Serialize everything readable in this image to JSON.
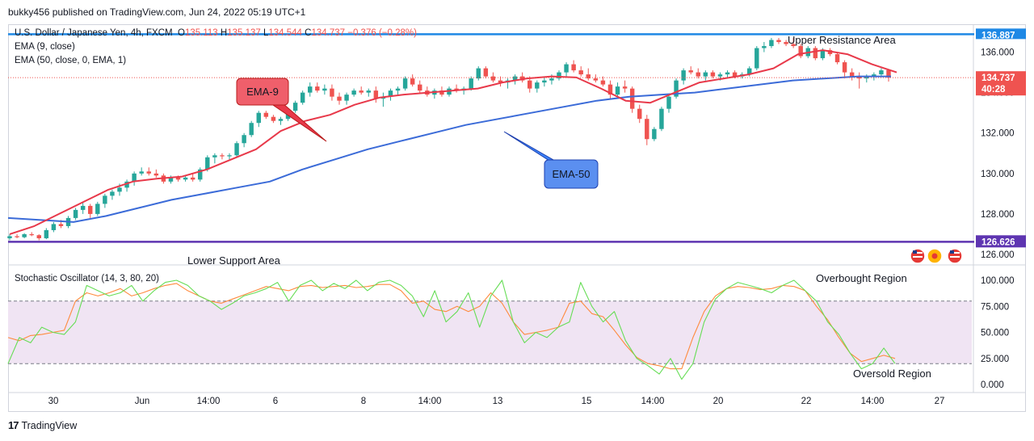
{
  "header": {
    "published": "bukky456 published on TradingView.com, Jun 24, 2022 05:19 UTC+1"
  },
  "legend": {
    "symbol": "U.S. Dollar / Japanese Yen, 4h, FXCM",
    "o_label": "O",
    "o": "135.113",
    "h_label": "H",
    "h": "135.137",
    "l_label": "L",
    "l": "134.544",
    "c_label": "C",
    "c": "134.737",
    "change": "−0.376 (−0.28%)",
    "ema9": "EMA (9, close)",
    "ema50": "EMA (50, close, 0, EMA, 1)",
    "stoch": "Stochastic Oscillator (14, 3, 80, 20)"
  },
  "annotations": {
    "ema9_callout": "EMA-9",
    "ema50_callout": "EMA-50",
    "upper": "Upper Resistance Area",
    "lower": "Lower Support Area",
    "overbought": "Overbought Region",
    "oversold": "Oversold Region"
  },
  "price_axis": {
    "currency": "JPY",
    "ticks": [
      "136.000",
      "134.000",
      "132.000",
      "130.000",
      "128.000",
      "126.000"
    ],
    "resistance_label": "136.887",
    "last_price_label": "134.737",
    "countdown": "40:28",
    "support_label": "126.626"
  },
  "stoch_axis": {
    "ticks": [
      "100.000",
      "75.000",
      "50.000",
      "25.000",
      "0.000"
    ]
  },
  "time_axis": {
    "labels": [
      "30",
      "Jun",
      "14:00",
      "6",
      "8",
      "14:00",
      "13",
      "15",
      "14:00",
      "20",
      "22",
      "14:00",
      "27"
    ]
  },
  "footer": {
    "brand": "TradingView",
    "logo": "17"
  },
  "colors": {
    "bull": "#26a69a",
    "bear": "#ef5350",
    "ema9": "#e8394a",
    "ema50": "#3b6bd8",
    "resistance": "#1e88e5",
    "support": "#5e35b1",
    "stoch_k": "#66dd55",
    "stoch_d": "#ff8a3d",
    "band": "#f0e4f3"
  },
  "chart_data": [
    {
      "type": "candlestick",
      "title": "U.S. Dollar / Japanese Yen, 4h, FXCM",
      "ylabel": "JPY",
      "ylim": [
        125.8,
        137.3
      ],
      "x": [
        "May 30",
        "",
        "",
        "",
        "",
        "",
        "",
        "",
        "",
        "",
        "",
        "Jun",
        "",
        "",
        "",
        "",
        "",
        "",
        "",
        "",
        "",
        "",
        "",
        "",
        "",
        "",
        "",
        "",
        "",
        "Jun 6",
        "",
        "",
        "",
        "",
        "",
        "",
        "",
        "",
        "",
        "",
        "",
        "",
        "",
        "Jun 8",
        "",
        "",
        "",
        "",
        "",
        "",
        "",
        "",
        "",
        "",
        "",
        "",
        "",
        "",
        "",
        "",
        "",
        "",
        "",
        "",
        "",
        "",
        "Jun 13",
        "",
        "",
        "",
        "",
        "",
        "",
        "",
        "",
        "",
        "",
        "",
        "",
        "",
        "",
        "Jun 15",
        "",
        "",
        "",
        "",
        "",
        "",
        "",
        "",
        "",
        "",
        "",
        "",
        "",
        "",
        "",
        "",
        "",
        "",
        "",
        "",
        "",
        "",
        "Jun 20",
        "",
        "",
        "",
        "",
        "",
        "",
        "",
        "",
        "",
        "",
        "",
        "",
        "",
        "Jun 22",
        "",
        "",
        "",
        "",
        "",
        "",
        "",
        "",
        "",
        "",
        "",
        "",
        ""
      ],
      "ohlc": [
        [
          126.8,
          127.0,
          126.7,
          126.9
        ],
        [
          126.9,
          127.0,
          126.8,
          126.85
        ],
        [
          126.85,
          127.05,
          126.8,
          127.0
        ],
        [
          127.0,
          127.1,
          126.9,
          126.95
        ],
        [
          126.95,
          127.0,
          126.7,
          126.8
        ],
        [
          126.8,
          127.3,
          126.75,
          127.2
        ],
        [
          127.2,
          127.6,
          127.1,
          127.5
        ],
        [
          127.5,
          127.7,
          127.3,
          127.4
        ],
        [
          127.4,
          127.9,
          127.3,
          127.8
        ],
        [
          127.8,
          128.3,
          127.7,
          128.2
        ],
        [
          128.2,
          128.6,
          128.0,
          128.4
        ],
        [
          128.4,
          128.5,
          127.8,
          128.0
        ],
        [
          128.0,
          128.6,
          127.9,
          128.5
        ],
        [
          128.5,
          129.0,
          128.3,
          128.9
        ],
        [
          128.9,
          129.2,
          128.7,
          129.1
        ],
        [
          129.1,
          129.5,
          128.9,
          129.3
        ],
        [
          129.3,
          129.7,
          129.1,
          129.6
        ],
        [
          129.6,
          130.1,
          129.4,
          130.0
        ],
        [
          130.0,
          130.3,
          129.9,
          130.1
        ],
        [
          130.1,
          130.3,
          129.9,
          130.0
        ],
        [
          130.0,
          130.2,
          129.8,
          129.9
        ],
        [
          129.9,
          130.0,
          129.5,
          129.6
        ],
        [
          129.6,
          129.9,
          129.5,
          129.8
        ],
        [
          129.8,
          129.9,
          129.6,
          129.7
        ],
        [
          129.7,
          129.9,
          129.6,
          129.8
        ],
        [
          129.8,
          130.0,
          129.6,
          129.7
        ],
        [
          129.7,
          130.3,
          129.6,
          130.2
        ],
        [
          130.2,
          130.9,
          130.1,
          130.8
        ],
        [
          130.8,
          131.0,
          130.5,
          130.9
        ],
        [
          130.9,
          131.0,
          130.7,
          130.85
        ],
        [
          130.85,
          131.0,
          130.7,
          130.9
        ],
        [
          130.9,
          131.6,
          130.8,
          131.5
        ],
        [
          131.5,
          132.0,
          131.3,
          131.9
        ],
        [
          131.9,
          132.6,
          131.8,
          132.5
        ],
        [
          132.5,
          133.1,
          132.3,
          133.0
        ],
        [
          133.0,
          133.1,
          132.7,
          132.8
        ],
        [
          132.8,
          132.9,
          132.5,
          132.6
        ],
        [
          132.6,
          132.8,
          132.4,
          132.7
        ],
        [
          132.7,
          133.2,
          132.6,
          133.1
        ],
        [
          133.1,
          133.6,
          133.0,
          133.5
        ],
        [
          133.5,
          134.1,
          133.4,
          134.0
        ],
        [
          134.0,
          134.5,
          133.8,
          134.3
        ],
        [
          134.3,
          134.5,
          134.0,
          134.1
        ],
        [
          134.1,
          134.4,
          133.9,
          134.2
        ],
        [
          134.2,
          134.4,
          133.6,
          133.8
        ],
        [
          133.8,
          134.0,
          133.4,
          133.6
        ],
        [
          133.6,
          134.0,
          133.4,
          133.9
        ],
        [
          133.9,
          134.2,
          133.8,
          134.1
        ],
        [
          134.1,
          134.3,
          133.9,
          134.0
        ],
        [
          134.0,
          134.2,
          133.8,
          134.1
        ],
        [
          134.1,
          134.3,
          133.5,
          133.7
        ],
        [
          133.7,
          134.0,
          133.3,
          133.8
        ],
        [
          133.8,
          134.2,
          133.6,
          134.1
        ],
        [
          134.1,
          134.3,
          133.9,
          134.2
        ],
        [
          134.2,
          134.8,
          134.1,
          134.7
        ],
        [
          134.7,
          134.9,
          134.3,
          134.4
        ],
        [
          134.4,
          134.6,
          134.0,
          134.1
        ],
        [
          134.1,
          134.3,
          133.8,
          133.9
        ],
        [
          133.9,
          134.2,
          133.7,
          134.1
        ],
        [
          134.1,
          134.3,
          133.8,
          133.9
        ],
        [
          133.9,
          134.3,
          133.8,
          134.2
        ],
        [
          134.2,
          134.4,
          134.0,
          134.1
        ],
        [
          134.1,
          134.3,
          133.9,
          134.2
        ],
        [
          134.2,
          134.8,
          134.1,
          134.7
        ],
        [
          134.7,
          135.3,
          134.6,
          135.2
        ],
        [
          135.2,
          135.3,
          134.7,
          134.8
        ],
        [
          134.8,
          135.0,
          134.5,
          134.6
        ],
        [
          134.6,
          134.8,
          134.3,
          134.5
        ],
        [
          134.5,
          134.7,
          134.2,
          134.6
        ],
        [
          134.6,
          134.9,
          134.4,
          134.8
        ],
        [
          134.8,
          135.0,
          134.5,
          134.6
        ],
        [
          134.6,
          134.8,
          134.0,
          134.2
        ],
        [
          134.2,
          134.6,
          134.0,
          134.5
        ],
        [
          134.5,
          134.8,
          134.3,
          134.6
        ],
        [
          134.6,
          134.9,
          134.4,
          134.7
        ],
        [
          134.7,
          135.1,
          134.6,
          135.0
        ],
        [
          135.0,
          135.5,
          134.8,
          135.4
        ],
        [
          135.4,
          135.6,
          135.0,
          135.1
        ],
        [
          135.1,
          135.3,
          134.8,
          134.9
        ],
        [
          134.9,
          135.2,
          134.6,
          134.7
        ],
        [
          134.7,
          134.9,
          134.5,
          134.6
        ],
        [
          134.6,
          134.8,
          134.3,
          134.4
        ],
        [
          134.4,
          134.6,
          133.7,
          133.9
        ],
        [
          133.9,
          134.5,
          133.8,
          134.3
        ],
        [
          134.3,
          134.6,
          134.0,
          134.2
        ],
        [
          134.2,
          134.3,
          133.0,
          133.2
        ],
        [
          133.2,
          133.4,
          132.5,
          132.7
        ],
        [
          132.7,
          132.9,
          131.4,
          131.7
        ],
        [
          131.7,
          132.3,
          131.6,
          132.2
        ],
        [
          132.2,
          133.3,
          132.1,
          133.2
        ],
        [
          133.2,
          133.9,
          133.0,
          133.8
        ],
        [
          133.8,
          134.7,
          133.7,
          134.6
        ],
        [
          134.6,
          135.2,
          134.4,
          135.1
        ],
        [
          135.1,
          135.3,
          134.9,
          135.0
        ],
        [
          135.0,
          135.2,
          134.7,
          134.8
        ],
        [
          134.8,
          135.1,
          134.6,
          135.0
        ],
        [
          135.0,
          135.1,
          134.7,
          134.8
        ],
        [
          134.8,
          135.0,
          134.6,
          134.9
        ],
        [
          134.9,
          135.1,
          134.7,
          135.0
        ],
        [
          135.0,
          135.1,
          134.7,
          134.8
        ],
        [
          134.8,
          135.0,
          134.7,
          134.9
        ],
        [
          134.9,
          135.3,
          134.8,
          135.2
        ],
        [
          135.2,
          136.3,
          135.1,
          136.2
        ],
        [
          136.2,
          136.5,
          136.0,
          136.3
        ],
        [
          136.3,
          136.7,
          136.2,
          136.6
        ],
        [
          136.6,
          136.7,
          136.4,
          136.5
        ],
        [
          136.5,
          136.6,
          136.3,
          136.4
        ],
        [
          136.4,
          136.7,
          136.2,
          136.3
        ],
        [
          136.3,
          136.4,
          135.7,
          135.8
        ],
        [
          135.8,
          136.3,
          135.7,
          136.2
        ],
        [
          136.2,
          136.3,
          135.6,
          135.7
        ],
        [
          135.7,
          136.2,
          135.6,
          136.1
        ],
        [
          136.1,
          136.2,
          135.8,
          135.9
        ],
        [
          135.9,
          136.0,
          135.4,
          135.5
        ],
        [
          135.5,
          135.6,
          134.7,
          135.0
        ],
        [
          135.0,
          135.2,
          134.6,
          134.8
        ],
        [
          134.8,
          135.0,
          134.2,
          134.7
        ],
        [
          134.7,
          134.9,
          134.5,
          134.8
        ],
        [
          134.8,
          135.0,
          134.6,
          134.9
        ],
        [
          134.9,
          135.2,
          134.8,
          135.1
        ],
        [
          135.113,
          135.137,
          134.544,
          134.737
        ]
      ],
      "ema9": [
        127.0,
        127.4,
        128.0,
        128.6,
        129.2,
        129.6,
        129.75,
        129.85,
        130.2,
        130.7,
        131.2,
        132.1,
        132.6,
        132.9,
        133.4,
        133.75,
        133.9,
        134.0,
        134.1,
        134.2,
        134.5,
        134.7,
        134.8,
        134.75,
        134.2,
        133.6,
        133.5,
        134.0,
        134.5,
        134.7,
        134.9,
        135.2,
        135.9,
        136.1,
        135.9,
        135.4,
        135.0
      ],
      "ema50": [
        127.8,
        127.7,
        127.6,
        127.9,
        128.3,
        128.7,
        129.0,
        129.3,
        129.6,
        130.2,
        130.7,
        131.2,
        131.6,
        132.0,
        132.4,
        132.7,
        133.0,
        133.3,
        133.6,
        133.8,
        133.9,
        134.0,
        134.2,
        134.4,
        134.6,
        134.7,
        134.8,
        134.8
      ],
      "resistance": 136.887,
      "support": 126.626,
      "last_price": 134.737
    },
    {
      "type": "line",
      "title": "Stochastic Oscillator (14, 3, 80, 20)",
      "ylim": [
        0,
        100
      ],
      "levels": [
        80,
        20
      ],
      "series": [
        {
          "name": "%K",
          "values": [
            20,
            45,
            40,
            55,
            50,
            48,
            60,
            95,
            90,
            85,
            88,
            95,
            80,
            90,
            98,
            100,
            95,
            85,
            80,
            72,
            78,
            85,
            88,
            92,
            98,
            80,
            95,
            100,
            90,
            97,
            92,
            100,
            90,
            98,
            100,
            95,
            85,
            65,
            90,
            60,
            70,
            88,
            55,
            85,
            100,
            60,
            40,
            50,
            45,
            55,
            60,
            98,
            75,
            60,
            70,
            42,
            25,
            18,
            10,
            25,
            5,
            20,
            60,
            82,
            92,
            98,
            95,
            92,
            88,
            95,
            100,
            90,
            80,
            60,
            48,
            30,
            15,
            20,
            35,
            20
          ]
        },
        {
          "name": "%D",
          "values": [
            45,
            42,
            47,
            48,
            50,
            52,
            80,
            88,
            85,
            88,
            92,
            85,
            88,
            92,
            95,
            97,
            90,
            85,
            80,
            78,
            82,
            86,
            90,
            94,
            92,
            90,
            94,
            95,
            93,
            94,
            95,
            93,
            94,
            96,
            96,
            90,
            78,
            80,
            72,
            70,
            75,
            70,
            75,
            88,
            78,
            60,
            48,
            50,
            52,
            55,
            78,
            80,
            68,
            65,
            52,
            38,
            26,
            20,
            18,
            15,
            15,
            45,
            70,
            85,
            92,
            94,
            93,
            91,
            92,
            95,
            94,
            90,
            75,
            62,
            45,
            30,
            22,
            25,
            28,
            25
          ]
        }
      ]
    }
  ]
}
